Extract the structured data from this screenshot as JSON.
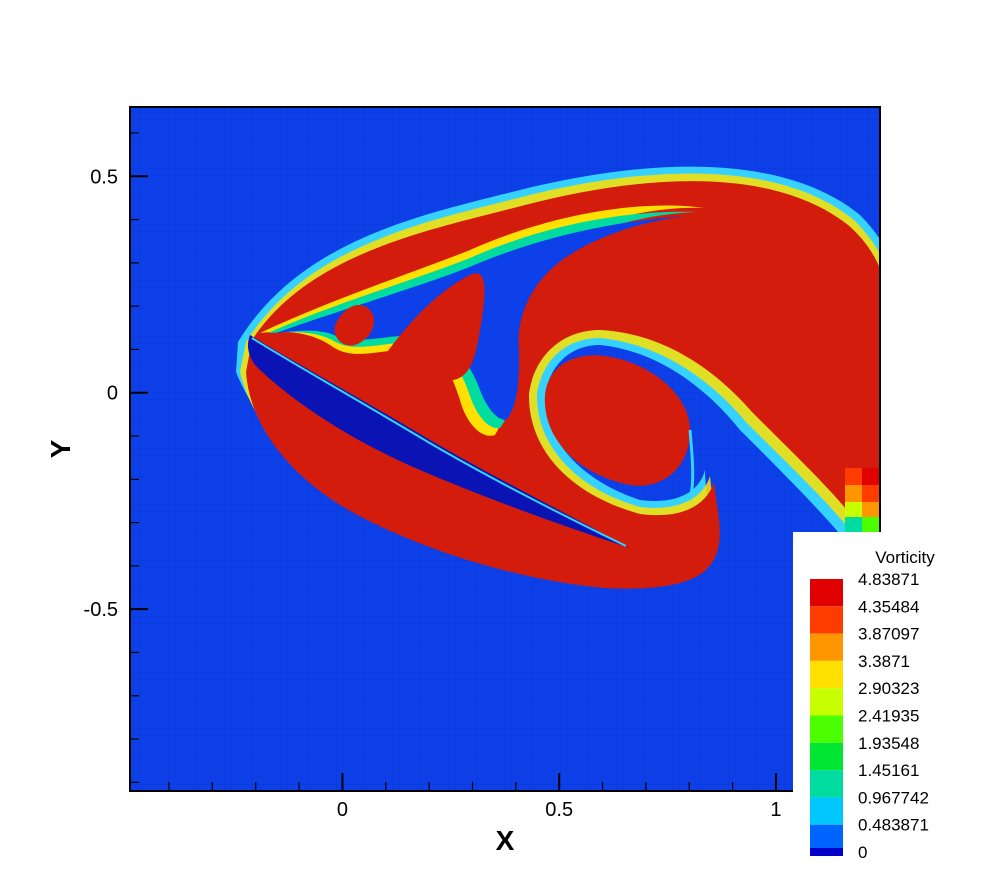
{
  "chart_data": {
    "type": "heatmap",
    "title": "",
    "xlabel": "X",
    "ylabel": "Y",
    "xlim": [
      -0.49,
      1.24
    ],
    "ylim": [
      -0.92,
      0.66
    ],
    "x_ticks": [
      0,
      0.5,
      1
    ],
    "x_tick_labels": [
      "0",
      "0.5",
      "1"
    ],
    "y_ticks": [
      0.5,
      0,
      -0.5
    ],
    "y_tick_labels": [
      "0.5",
      "0",
      "-0.5"
    ],
    "grid": false,
    "colorbar": {
      "title": "Vorticity",
      "placement": "bottom-right",
      "levels": [
        4.83871,
        4.35484,
        3.87097,
        3.3871,
        2.90323,
        2.41935,
        1.93548,
        1.45161,
        0.967742,
        0.483871,
        0
      ],
      "level_labels": [
        "4.83871",
        "4.35484",
        "3.87097",
        "3.3871",
        "2.90323",
        "2.41935",
        "1.93548",
        "1.45161",
        "0.967742",
        "0.483871",
        "0"
      ],
      "colors": [
        "#e10000",
        "#ff3c00",
        "#ff9600",
        "#ffe000",
        "#c8ff00",
        "#4cff00",
        "#00e632",
        "#00dca0",
        "#00c8ff",
        "#0064ff",
        "#0000c8"
      ]
    },
    "field_colors": {
      "background": "#0d40e8",
      "high": "#d41c0c",
      "zero": "#0a14b4",
      "halo": "#36d2ff"
    }
  }
}
